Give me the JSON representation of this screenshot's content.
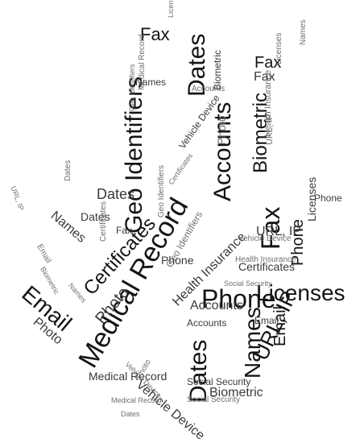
{
  "title": "",
  "words": [
    {
      "text": "Dates",
      "size": 30,
      "shade": 0
    },
    {
      "text": "Accounts",
      "size": 30,
      "shade": 0
    },
    {
      "text": "Medical Record",
      "size": 34,
      "shade": 0
    },
    {
      "text": "Geo Identifiers",
      "size": 30,
      "shade": 0
    },
    {
      "text": "Certificates",
      "size": 24,
      "shade": 0
    },
    {
      "text": "Email",
      "size": 28,
      "shade": 0
    },
    {
      "text": "Fax",
      "size": 32,
      "shade": 0
    },
    {
      "text": "Phone",
      "size": 32,
      "shade": 0
    },
    {
      "text": "Licenses",
      "size": 28,
      "shade": 0
    },
    {
      "text": "Biometric",
      "size": 24,
      "shade": 0
    },
    {
      "text": "Names",
      "size": 28,
      "shade": 0
    },
    {
      "text": "Dates",
      "size": 30,
      "shade": 0
    },
    {
      "text": "URL, IP",
      "size": 26,
      "shade": 0
    },
    {
      "text": "Email",
      "size": 20,
      "shade": 0
    },
    {
      "text": "Phone",
      "size": 20,
      "shade": 0
    },
    {
      "text": "Fax",
      "size": 22,
      "shade": 0
    },
    {
      "text": "Fax",
      "size": 20,
      "shade": 0
    },
    {
      "text": "Fax",
      "size": 16,
      "shade": 1
    },
    {
      "text": "Dates",
      "size": 18,
      "shade": 1
    },
    {
      "text": "Photo",
      "size": 20,
      "shade": 1
    },
    {
      "text": "Photo",
      "size": 16,
      "shade": 1
    },
    {
      "text": "Photo",
      "size": 14,
      "shade": 2
    },
    {
      "text": "Names",
      "size": 16,
      "shade": 1
    },
    {
      "text": "Licenses",
      "size": 14,
      "shade": 1
    },
    {
      "text": "Biometric",
      "size": 12,
      "shade": 1
    },
    {
      "text": "Health Insurance",
      "size": 16,
      "shade": 1
    },
    {
      "text": "Health Insurance",
      "size": 11,
      "shade": 2
    },
    {
      "text": "Health Insurance",
      "size": 10,
      "shade": 2
    },
    {
      "text": "Social Security",
      "size": 12,
      "shade": 1
    },
    {
      "text": "Social Security",
      "size": 9,
      "shade": 2
    },
    {
      "text": "Vehicle Device",
      "size": 12,
      "shade": 1
    },
    {
      "text": "Vehicle Device",
      "size": 10,
      "shade": 2
    },
    {
      "text": "Vehicle Device",
      "size": 16,
      "shade": 1
    },
    {
      "text": "Medical Record",
      "size": 10,
      "shade": 2
    },
    {
      "text": "Medical Record",
      "size": 14,
      "shade": 1
    },
    {
      "text": "Medical Record",
      "size": 9,
      "shade": 2
    },
    {
      "text": "Accounts",
      "size": 16,
      "shade": 1
    },
    {
      "text": "Accounts",
      "size": 12,
      "shade": 1
    },
    {
      "text": "Geo Identifiers",
      "size": 12,
      "shade": 2
    },
    {
      "text": "Geo Identifiers",
      "size": 10,
      "shade": 2
    },
    {
      "text": "URL, IP",
      "size": 16,
      "shade": 1
    },
    {
      "text": "URL, IP",
      "size": 11,
      "shade": 2
    },
    {
      "text": "Certificates",
      "size": 14,
      "shade": 1
    },
    {
      "text": "Certificates",
      "size": 10,
      "shade": 2
    },
    {
      "text": "Biometric",
      "size": 16,
      "shade": 1
    },
    {
      "text": "Email",
      "size": 12,
      "shade": 1
    },
    {
      "text": "Names",
      "size": 12,
      "shade": 1
    },
    {
      "text": "Names",
      "size": 10,
      "shade": 2
    },
    {
      "text": "Dates",
      "size": 14,
      "shade": 1
    },
    {
      "text": "Dates",
      "size": 10,
      "shade": 2
    },
    {
      "text": "Licenses",
      "size": 10,
      "shade": 2
    },
    {
      "text": "Phone",
      "size": 14,
      "shade": 1
    },
    {
      "text": "Phone",
      "size": 12,
      "shade": 1
    },
    {
      "text": "Fax",
      "size": 12,
      "shade": 1
    },
    {
      "text": "Photo",
      "size": 10,
      "shade": 2
    },
    {
      "text": "Social Security",
      "size": 10,
      "shade": 2
    },
    {
      "text": "Accounts",
      "size": 10,
      "shade": 2
    },
    {
      "text": "Email",
      "size": 10,
      "shade": 2
    },
    {
      "text": "Names",
      "size": 9,
      "shade": 2
    },
    {
      "text": "Licenses",
      "size": 9,
      "shade": 2
    },
    {
      "text": "Biometric",
      "size": 9,
      "shade": 2
    },
    {
      "text": "Geo Identifiers",
      "size": 9,
      "shade": 2
    },
    {
      "text": "URL, IP",
      "size": 9,
      "shade": 2
    },
    {
      "text": "Certificates",
      "size": 9,
      "shade": 2
    },
    {
      "text": "Vehicle Device",
      "size": 9,
      "shade": 2
    },
    {
      "text": "Dates",
      "size": 9,
      "shade": 2
    }
  ],
  "colors": {
    "shades": [
      "#141414",
      "#3a3a3a",
      "#6f6f6f"
    ],
    "background": "#ffffff"
  }
}
